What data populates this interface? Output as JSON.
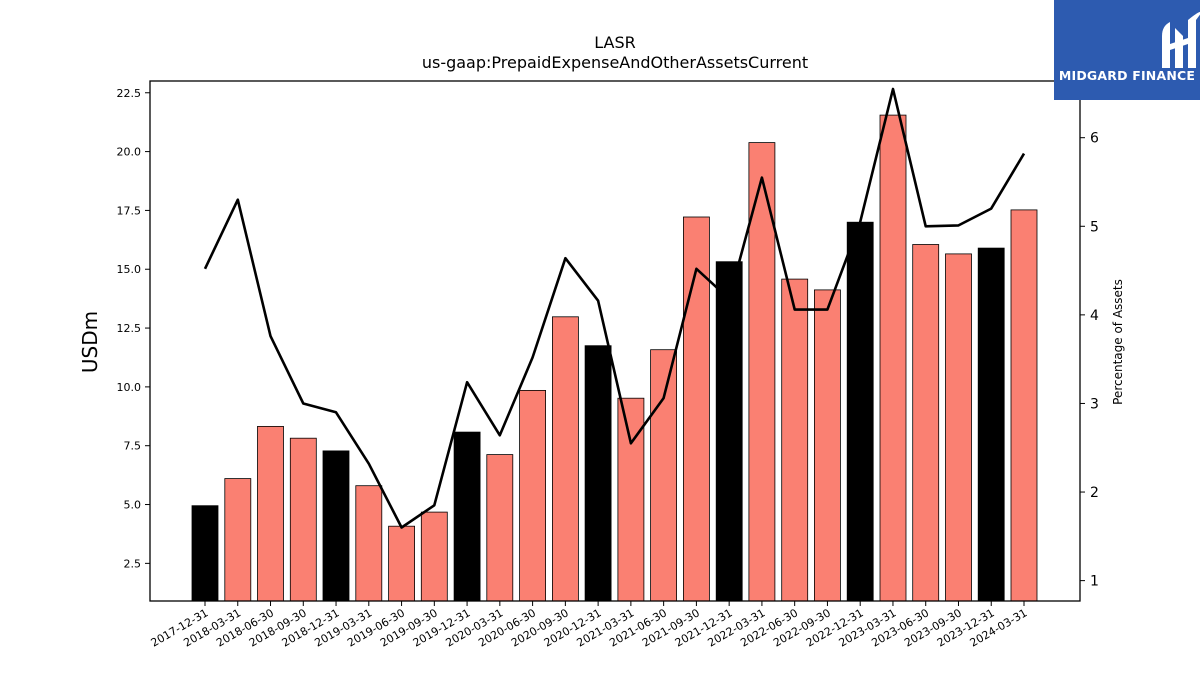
{
  "chart_data": {
    "type": "bar",
    "title": "LASR",
    "subtitle": "us-gaap:PrepaidExpenseAndOtherAssetsCurrent",
    "ylabel": "USDm",
    "y2label": "Percentage of Assets",
    "categories": [
      "2017-12-31",
      "2018-03-31",
      "2018-06-30",
      "2018-09-30",
      "2018-12-31",
      "2019-03-31",
      "2019-06-30",
      "2019-09-30",
      "2019-12-31",
      "2020-03-31",
      "2020-06-30",
      "2020-09-30",
      "2020-12-31",
      "2021-03-31",
      "2021-06-30",
      "2021-09-30",
      "2021-12-31",
      "2022-03-31",
      "2022-06-30",
      "2022-09-30",
      "2022-12-31",
      "2023-03-31",
      "2023-06-30",
      "2023-09-30",
      "2023-12-31",
      "2024-03-31"
    ],
    "series": [
      {
        "type": "bar",
        "axis": "left",
        "values": [
          4.95,
          6.1,
          8.32,
          7.82,
          7.28,
          5.8,
          4.08,
          4.68,
          8.08,
          7.12,
          9.85,
          12.98,
          11.75,
          9.52,
          11.58,
          17.22,
          15.32,
          20.38,
          14.58,
          14.12,
          17.0,
          21.55,
          16.05,
          15.65,
          15.9,
          17.52
        ],
        "colors": [
          "#000000",
          "#fa8072",
          "#fa8072",
          "#fa8072",
          "#000000",
          "#fa8072",
          "#fa8072",
          "#fa8072",
          "#000000",
          "#fa8072",
          "#fa8072",
          "#fa8072",
          "#000000",
          "#fa8072",
          "#fa8072",
          "#fa8072",
          "#000000",
          "#fa8072",
          "#fa8072",
          "#fa8072",
          "#000000",
          "#fa8072",
          "#fa8072",
          "#fa8072",
          "#000000",
          "#fa8072"
        ]
      },
      {
        "type": "line",
        "axis": "right",
        "color": "#000000",
        "values": [
          4.52,
          5.3,
          3.76,
          3.0,
          2.9,
          2.32,
          1.6,
          1.85,
          3.24,
          2.64,
          3.52,
          4.64,
          4.16,
          2.55,
          3.06,
          4.52,
          4.18,
          5.55,
          4.06,
          4.06,
          5.05,
          6.55,
          5.0,
          5.01,
          5.2,
          5.82
        ]
      }
    ],
    "ylim": [
      0.9,
      23.0
    ],
    "y2lim": [
      0.77,
      6.64
    ],
    "yticks": [
      2.5,
      5.0,
      7.5,
      10.0,
      12.5,
      15.0,
      17.5,
      20.0,
      22.5
    ],
    "y2ticks": [
      1,
      2,
      3,
      4,
      5,
      6
    ],
    "grid": false,
    "legend": "none"
  },
  "logo": {
    "text": "MIDGARD FINANCE",
    "color": "#2d5bb0"
  }
}
